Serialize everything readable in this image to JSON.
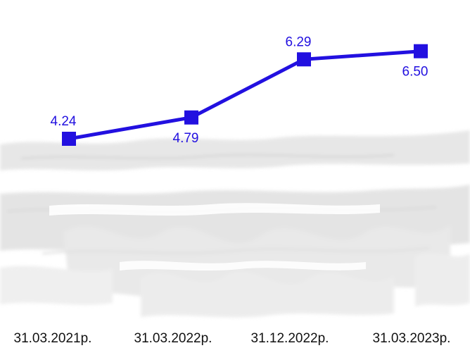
{
  "chart_data": {
    "type": "line",
    "title": "",
    "xlabel": "",
    "ylabel": "",
    "categories": [
      "31.03.2021р.",
      "31.03.2022р.",
      "31.12.2022р.",
      "31.03.2023р."
    ],
    "series": [
      {
        "values": [
          4.24,
          4.79,
          6.29,
          6.5
        ],
        "color": "#2210e0"
      }
    ],
    "ylim": [
      0,
      7
    ],
    "grid": false,
    "legend": "none",
    "data_labels": true,
    "marker": "square",
    "background": "faded sketch texture"
  }
}
